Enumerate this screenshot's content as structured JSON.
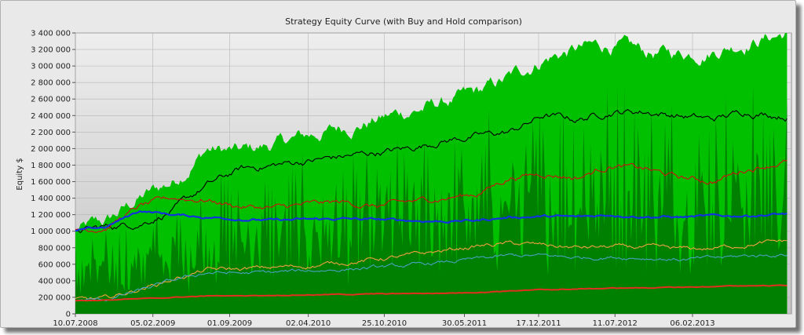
{
  "chart_data": {
    "type": "area",
    "title": "Strategy Equity Curve (with Buy and Hold comparison)",
    "xlabel": "",
    "ylabel": "Equity $",
    "ylim": [
      0,
      3400000
    ],
    "yticks": [
      0,
      200000,
      400000,
      600000,
      800000,
      1000000,
      1200000,
      1400000,
      1600000,
      1800000,
      2000000,
      2200000,
      2400000,
      2600000,
      2800000,
      3000000,
      3200000,
      3400000
    ],
    "ytick_labels": [
      "0",
      "200 000",
      "400 000",
      "600 000",
      "800 000",
      "1 000 000",
      "1 200 000",
      "1 400 000",
      "1 600 000",
      "1 800 000",
      "2 000 000",
      "2 200 000",
      "2 400 000",
      "2 600 000",
      "2 800 000",
      "3 000 000",
      "3 200 000",
      "3 400 000"
    ],
    "xlim": [
      "2008-07-10",
      "2013-11-01"
    ],
    "xticks": [
      "10.07.2008",
      "05.02.2009",
      "01.09.2009",
      "02.04.2010",
      "25.10.2010",
      "30.05.2011",
      "17.12.2011",
      "11.07.2012",
      "06.02.2013"
    ],
    "grid": true,
    "legend": "none",
    "colors": {
      "plot_bg_top": "#eeeeee",
      "plot_bg_bottom": "#c8c8c8",
      "area_light": "#00c000",
      "area_dark": "#008000",
      "black": "#000000",
      "red": "#cc1111",
      "blue": "#1133dd",
      "orange": "#f0a040",
      "teal": "#4aa0c0",
      "bottom_red": "#e03020"
    },
    "series": [
      {
        "color": "#00c000",
        "kind": "area-top",
        "x": [
          "2008-07-10",
          "2008-10-01",
          "2009-01-01",
          "2009-04-01",
          "2009-07-01",
          "2009-10-01",
          "2010-01-01",
          "2010-04-01",
          "2010-07-01",
          "2010-10-01",
          "2011-01-01",
          "2011-04-01",
          "2011-07-01",
          "2011-10-01",
          "2012-01-01",
          "2012-04-01",
          "2012-07-01",
          "2012-10-01",
          "2013-01-01",
          "2013-04-01",
          "2013-07-01",
          "2013-10-20"
        ],
        "values": [
          1000000,
          1100000,
          1400000,
          1600000,
          2000000,
          1950000,
          2050000,
          2150000,
          2250000,
          2350000,
          2450000,
          2550000,
          2650000,
          2850000,
          3100000,
          3200000,
          3250000,
          3150000,
          3150000,
          3200000,
          3300000,
          3400000
        ]
      },
      {
        "color": "#000000",
        "x": [
          "2008-07-10",
          "2008-10-01",
          "2009-01-01",
          "2009-04-01",
          "2009-07-01",
          "2009-10-01",
          "2010-01-01",
          "2010-04-01",
          "2010-07-01",
          "2010-10-01",
          "2011-01-01",
          "2011-04-01",
          "2011-07-01",
          "2011-10-01",
          "2012-01-01",
          "2012-04-01",
          "2012-07-01",
          "2012-10-01",
          "2013-01-01",
          "2013-04-01",
          "2013-07-01",
          "2013-10-20"
        ],
        "values": [
          1000000,
          1050000,
          1100000,
          1250000,
          1550000,
          1750000,
          1800000,
          1850000,
          1900000,
          1950000,
          2000000,
          2100000,
          2150000,
          2200000,
          2400000,
          2350000,
          2450000,
          2450000,
          2400000,
          2350000,
          2450000,
          2400000
        ]
      },
      {
        "color": "#cc1111",
        "x": [
          "2008-07-10",
          "2008-10-01",
          "2009-01-01",
          "2009-04-01",
          "2009-07-01",
          "2009-10-01",
          "2010-01-01",
          "2010-04-01",
          "2010-07-01",
          "2010-10-01",
          "2011-01-01",
          "2011-04-01",
          "2011-07-01",
          "2011-10-01",
          "2012-01-01",
          "2012-04-01",
          "2012-07-01",
          "2012-10-01",
          "2013-01-01",
          "2013-04-01",
          "2013-07-01",
          "2013-10-20"
        ],
        "values": [
          1000000,
          1050000,
          1300000,
          1400000,
          1380000,
          1300000,
          1280000,
          1320000,
          1350000,
          1300000,
          1350000,
          1400000,
          1450000,
          1650000,
          1700000,
          1650000,
          1800000,
          1750000,
          1650000,
          1600000,
          1750000,
          1850000
        ]
      },
      {
        "color": "#1133dd",
        "x": [
          "2008-07-10",
          "2008-10-01",
          "2009-01-01",
          "2009-04-01",
          "2009-07-01",
          "2009-10-01",
          "2010-01-01",
          "2010-04-01",
          "2010-07-01",
          "2010-10-01",
          "2011-01-01",
          "2011-04-01",
          "2011-07-01",
          "2011-10-01",
          "2012-01-01",
          "2012-04-01",
          "2012-07-01",
          "2012-10-01",
          "2013-01-01",
          "2013-04-01",
          "2013-07-01",
          "2013-10-20"
        ],
        "values": [
          1000000,
          1050000,
          1250000,
          1200000,
          1170000,
          1150000,
          1130000,
          1140000,
          1150000,
          1140000,
          1130000,
          1120000,
          1130000,
          1170000,
          1180000,
          1170000,
          1200000,
          1180000,
          1170000,
          1180000,
          1190000,
          1210000
        ]
      },
      {
        "color": "#f0a040",
        "x": [
          "2008-07-10",
          "2008-10-01",
          "2009-01-01",
          "2009-04-01",
          "2009-07-01",
          "2009-10-01",
          "2010-01-01",
          "2010-04-01",
          "2010-07-01",
          "2010-10-01",
          "2011-01-01",
          "2011-04-01",
          "2011-07-01",
          "2011-10-01",
          "2012-01-01",
          "2012-04-01",
          "2012-07-01",
          "2012-10-01",
          "2013-01-01",
          "2013-04-01",
          "2013-07-01",
          "2013-10-20"
        ],
        "values": [
          170000,
          180000,
          300000,
          420000,
          530000,
          540000,
          560000,
          580000,
          620000,
          660000,
          700000,
          760000,
          820000,
          850000,
          830000,
          800000,
          810000,
          800000,
          780000,
          790000,
          840000,
          880000
        ]
      },
      {
        "color": "#4aa0c0",
        "x": [
          "2008-07-10",
          "2008-10-01",
          "2009-01-01",
          "2009-04-01",
          "2009-07-01",
          "2009-10-01",
          "2010-01-01",
          "2010-04-01",
          "2010-07-01",
          "2010-10-01",
          "2011-01-01",
          "2011-04-01",
          "2011-07-01",
          "2011-10-01",
          "2012-01-01",
          "2012-04-01",
          "2012-07-01",
          "2012-10-01",
          "2013-01-01",
          "2013-04-01",
          "2013-07-01",
          "2013-10-20"
        ],
        "values": [
          160000,
          170000,
          280000,
          400000,
          500000,
          490000,
          500000,
          520000,
          540000,
          560000,
          580000,
          620000,
          660000,
          700000,
          700000,
          680000,
          690000,
          680000,
          660000,
          670000,
          700000,
          720000
        ]
      },
      {
        "color": "#e03020",
        "x": [
          "2008-07-10",
          "2008-10-01",
          "2009-01-01",
          "2009-04-01",
          "2009-07-01",
          "2009-10-01",
          "2010-01-01",
          "2010-04-01",
          "2010-07-01",
          "2010-10-01",
          "2011-01-01",
          "2011-04-01",
          "2011-07-01",
          "2011-10-01",
          "2012-01-01",
          "2012-04-01",
          "2012-07-01",
          "2012-10-01",
          "2013-01-01",
          "2013-04-01",
          "2013-07-01",
          "2013-10-20"
        ],
        "values": [
          160000,
          165000,
          180000,
          200000,
          215000,
          220000,
          225000,
          230000,
          235000,
          240000,
          245000,
          250000,
          260000,
          280000,
          290000,
          300000,
          310000,
          315000,
          320000,
          330000,
          340000,
          345000
        ]
      }
    ]
  }
}
